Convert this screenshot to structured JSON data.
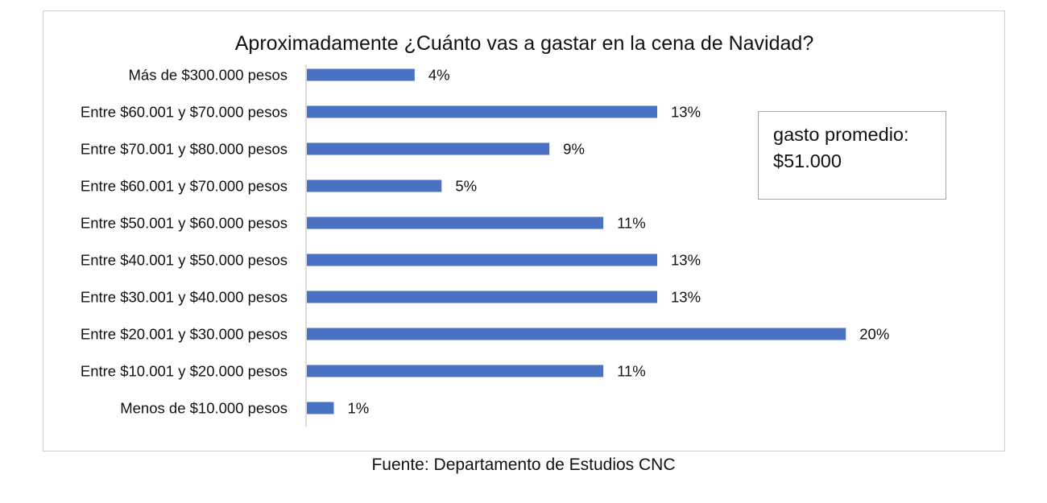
{
  "chart_data": {
    "type": "bar",
    "orientation": "horizontal",
    "title": "Aproximadamente ¿Cuánto vas a gastar en la cena de Navidad?",
    "categories": [
      "Más de $300.000 pesos",
      "Entre $60.001 y $70.000 pesos",
      "Entre $70.001 y $80.000 pesos",
      "Entre $60.001 y $70.000 pesos",
      "Entre $50.001 y $60.000 pesos",
      "Entre $40.001 y $50.000 pesos",
      "Entre $30.001 y $40.000 pesos",
      "Entre $20.001 y $30.000 pesos",
      "Entre $10.001 y $20.000 pesos",
      "Menos de $10.000 pesos"
    ],
    "values": [
      4,
      13,
      9,
      5,
      11,
      13,
      13,
      20,
      11,
      1
    ],
    "value_labels": [
      "4%",
      "13%",
      "9%",
      "5%",
      "11%",
      "13%",
      "13%",
      "20%",
      "11%",
      "1%"
    ],
    "bar_color": "#4a72c4",
    "xlim": [
      0,
      20.5
    ],
    "grid": false,
    "legend": "none"
  },
  "note": {
    "line1": "gasto promedio:",
    "line2": "$51.000"
  },
  "source": "Fuente: Departamento de Estudios CNC"
}
